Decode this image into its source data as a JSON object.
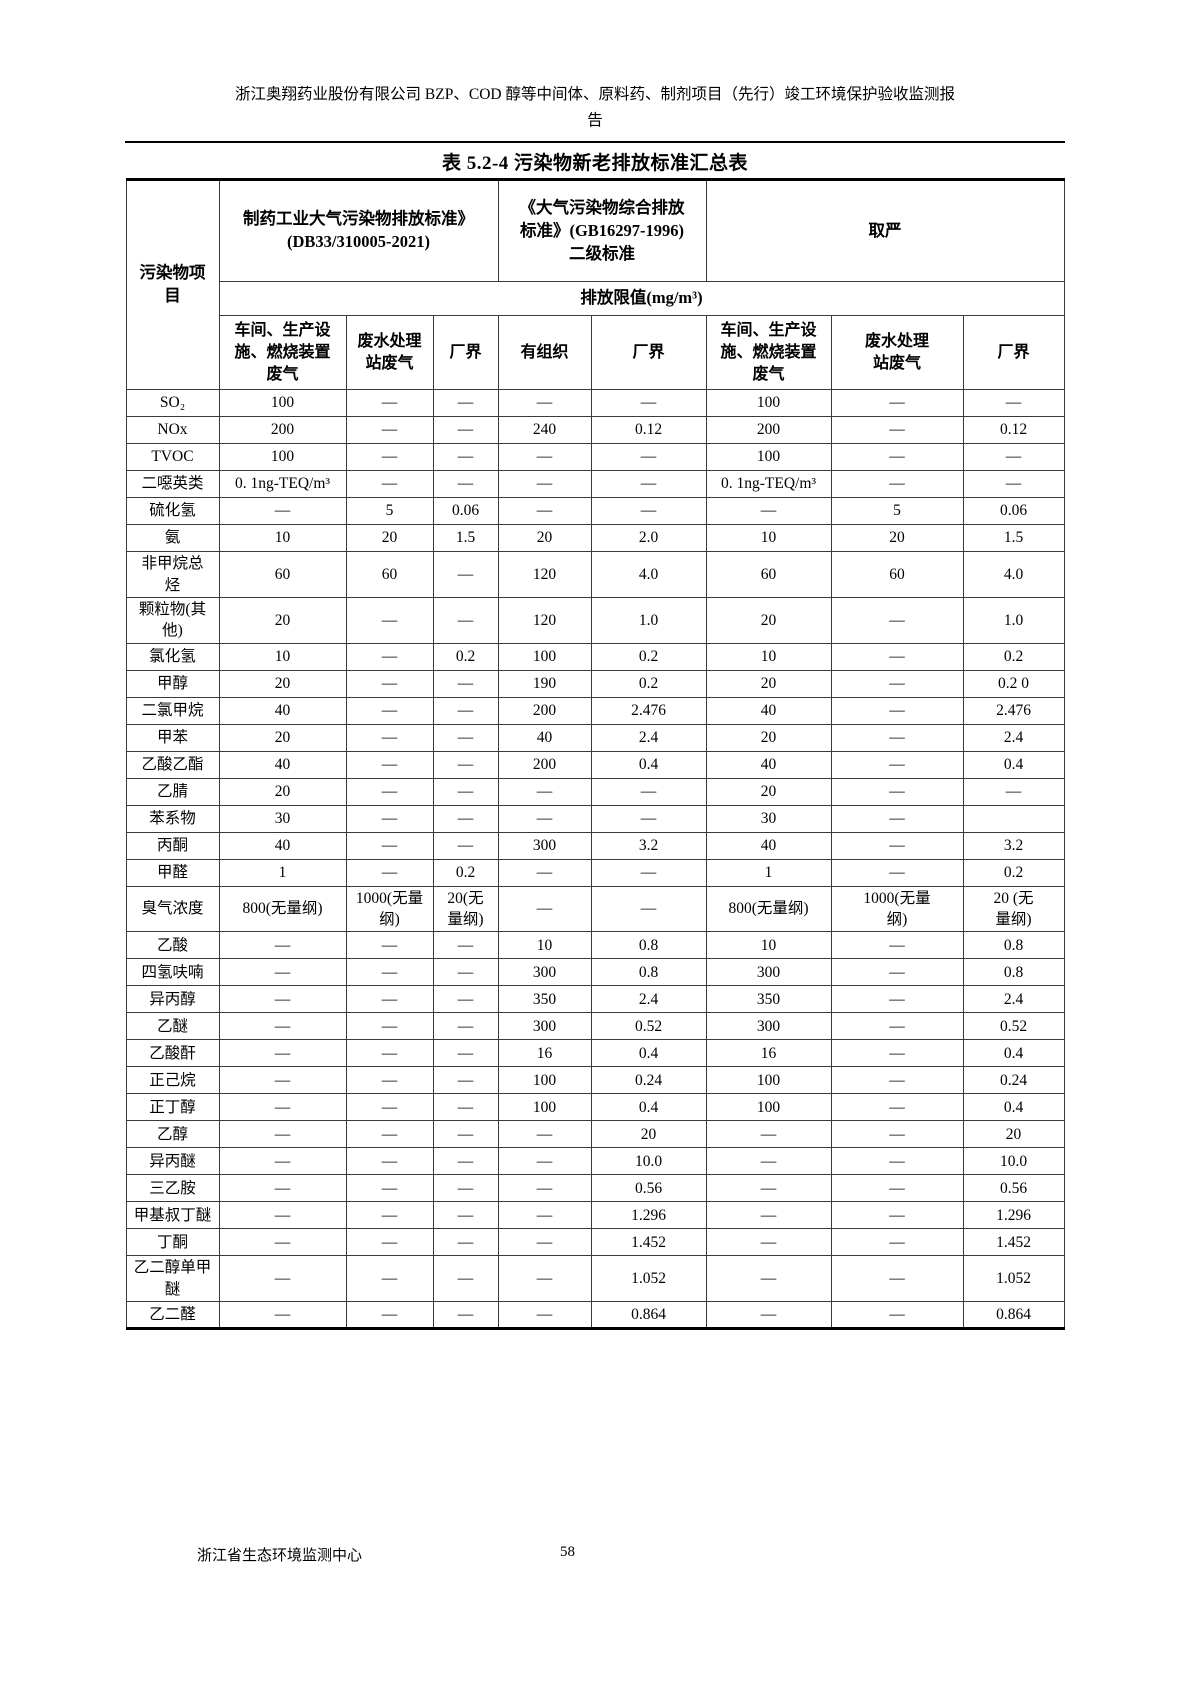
{
  "page": {
    "header_title": "浙江奥翔药业股份有限公司 BZP、COD 醇等中间体、原料药、制剂项目（先行）竣工环境保护验收监测报\n告",
    "footer_left": "浙江省生态环境监测中心",
    "footer_page": "58"
  },
  "table": {
    "title": "表 5.2-4 污染物新老排放标准汇总表",
    "header": {
      "pollutant_col": "污染物项\n目",
      "group1": "制药工业大气污染物排放标准》\n(DB33/310005-2021)",
      "group2": "《大气污染物综合排放\n标准》(GB16297-1996)\n二级标准",
      "group3": "取严",
      "limit_row": "排放限值(mg/m³)",
      "subcols": [
        "车间、生产设\n施、燃烧装置\n废气",
        "废水处理\n站废气",
        "厂界",
        "有组织",
        "厂界",
        "车间、生产设\n施、燃烧装置\n废气",
        "废水处理\n站废气",
        "厂界"
      ]
    },
    "rows": [
      {
        "name": "SO₂",
        "values": [
          "100",
          "—",
          "—",
          "—",
          "—",
          "100",
          "—",
          "—"
        ]
      },
      {
        "name": "NOx",
        "values": [
          "200",
          "—",
          "—",
          "240",
          "0.12",
          "200",
          "—",
          "0.12"
        ]
      },
      {
        "name": "TVOC",
        "values": [
          "100",
          "—",
          "—",
          "—",
          "—",
          "100",
          "—",
          "—"
        ]
      },
      {
        "name": "二噁英类",
        "values": [
          "0. 1ng-TEQ/m³",
          "—",
          "—",
          "—",
          "—",
          "0. 1ng-TEQ/m³",
          "—",
          "—"
        ]
      },
      {
        "name": "硫化氢",
        "values": [
          "—",
          "5",
          "0.06",
          "—",
          "—",
          "—",
          "5",
          "0.06"
        ]
      },
      {
        "name": "氨",
        "values": [
          "10",
          "20",
          "1.5",
          "20",
          "2.0",
          "10",
          "20",
          "1.5"
        ]
      },
      {
        "name": "非甲烷总\n烃",
        "values": [
          "60",
          "60",
          "—",
          "120",
          "4.0",
          "60",
          "60",
          "4.0"
        ]
      },
      {
        "name": "颗粒物(其\n他)",
        "values": [
          "20",
          "—",
          "—",
          "120",
          "1.0",
          "20",
          "—",
          "1.0"
        ]
      },
      {
        "name": "氯化氢",
        "values": [
          "10",
          "—",
          "0.2",
          "100",
          "0.2",
          "10",
          "—",
          "0.2"
        ]
      },
      {
        "name": "甲醇",
        "values": [
          "20",
          "—",
          "—",
          "190",
          "0.2",
          "20",
          "—",
          "0.2 0"
        ]
      },
      {
        "name": "二氯甲烷",
        "values": [
          "40",
          "—",
          "—",
          "200",
          "2.476",
          "40",
          "—",
          "2.476"
        ]
      },
      {
        "name": "甲苯",
        "values": [
          "20",
          "—",
          "—",
          "40",
          "2.4",
          "20",
          "—",
          "2.4"
        ]
      },
      {
        "name": "乙酸乙酯",
        "values": [
          "40",
          "—",
          "—",
          "200",
          "0.4",
          "40",
          "—",
          "0.4"
        ]
      },
      {
        "name": "乙腈",
        "values": [
          "20",
          "—",
          "—",
          "—",
          "—",
          "20",
          "—",
          "—"
        ]
      },
      {
        "name": "苯系物",
        "values": [
          "30",
          "—",
          "—",
          "—",
          "—",
          "30",
          "—",
          ""
        ]
      },
      {
        "name": "丙酮",
        "values": [
          "40",
          "—",
          "—",
          "300",
          "3.2",
          "40",
          "—",
          "3.2"
        ]
      },
      {
        "name": "甲醛",
        "values": [
          "1",
          "—",
          "0.2",
          "—",
          "—",
          "1",
          "—",
          "0.2"
        ]
      },
      {
        "name": "臭气浓度",
        "values": [
          "800(无量纲)",
          "1000(无量\n纲)",
          "20(无\n量纲)",
          "—",
          "—",
          "800(无量纲)",
          "1000(无量\n纲)",
          "20 (无\n量纲)"
        ]
      },
      {
        "name": "乙酸",
        "values": [
          "—",
          "—",
          "—",
          "10",
          "0.8",
          "10",
          "—",
          "0.8"
        ]
      },
      {
        "name": "四氢呋喃",
        "values": [
          "—",
          "—",
          "—",
          "300",
          "0.8",
          "300",
          "—",
          "0.8"
        ]
      },
      {
        "name": "异丙醇",
        "values": [
          "—",
          "—",
          "—",
          "350",
          "2.4",
          "350",
          "—",
          "2.4"
        ]
      },
      {
        "name": "乙醚",
        "values": [
          "—",
          "—",
          "—",
          "300",
          "0.52",
          "300",
          "—",
          "0.52"
        ]
      },
      {
        "name": "乙酸酐",
        "values": [
          "—",
          "—",
          "—",
          "16",
          "0.4",
          "16",
          "—",
          "0.4"
        ]
      },
      {
        "name": "正己烷",
        "values": [
          "—",
          "—",
          "—",
          "100",
          "0.24",
          "100",
          "—",
          "0.24"
        ]
      },
      {
        "name": "正丁醇",
        "values": [
          "—",
          "—",
          "—",
          "100",
          "0.4",
          "100",
          "—",
          "0.4"
        ]
      },
      {
        "name": "乙醇",
        "values": [
          "—",
          "—",
          "—",
          "—",
          "20",
          "—",
          "—",
          "20"
        ]
      },
      {
        "name": "异丙醚",
        "values": [
          "—",
          "—",
          "—",
          "—",
          "10.0",
          "—",
          "—",
          "10.0"
        ]
      },
      {
        "name": "三乙胺",
        "values": [
          "—",
          "—",
          "—",
          "—",
          "0.56",
          "—",
          "—",
          "0.56"
        ]
      },
      {
        "name": "甲基叔丁醚",
        "values": [
          "—",
          "—",
          "—",
          "—",
          "1.296",
          "—",
          "—",
          "1.296"
        ]
      },
      {
        "name": "丁酮",
        "values": [
          "—",
          "—",
          "—",
          "—",
          "1.452",
          "—",
          "—",
          "1.452"
        ]
      },
      {
        "name": "乙二醇单甲\n醚",
        "values": [
          "—",
          "—",
          "—",
          "—",
          "1.052",
          "—",
          "—",
          "1.052"
        ]
      },
      {
        "name": "乙二醛",
        "values": [
          "—",
          "—",
          "—",
          "—",
          "0.864",
          "—",
          "—",
          "0.864"
        ]
      }
    ]
  }
}
